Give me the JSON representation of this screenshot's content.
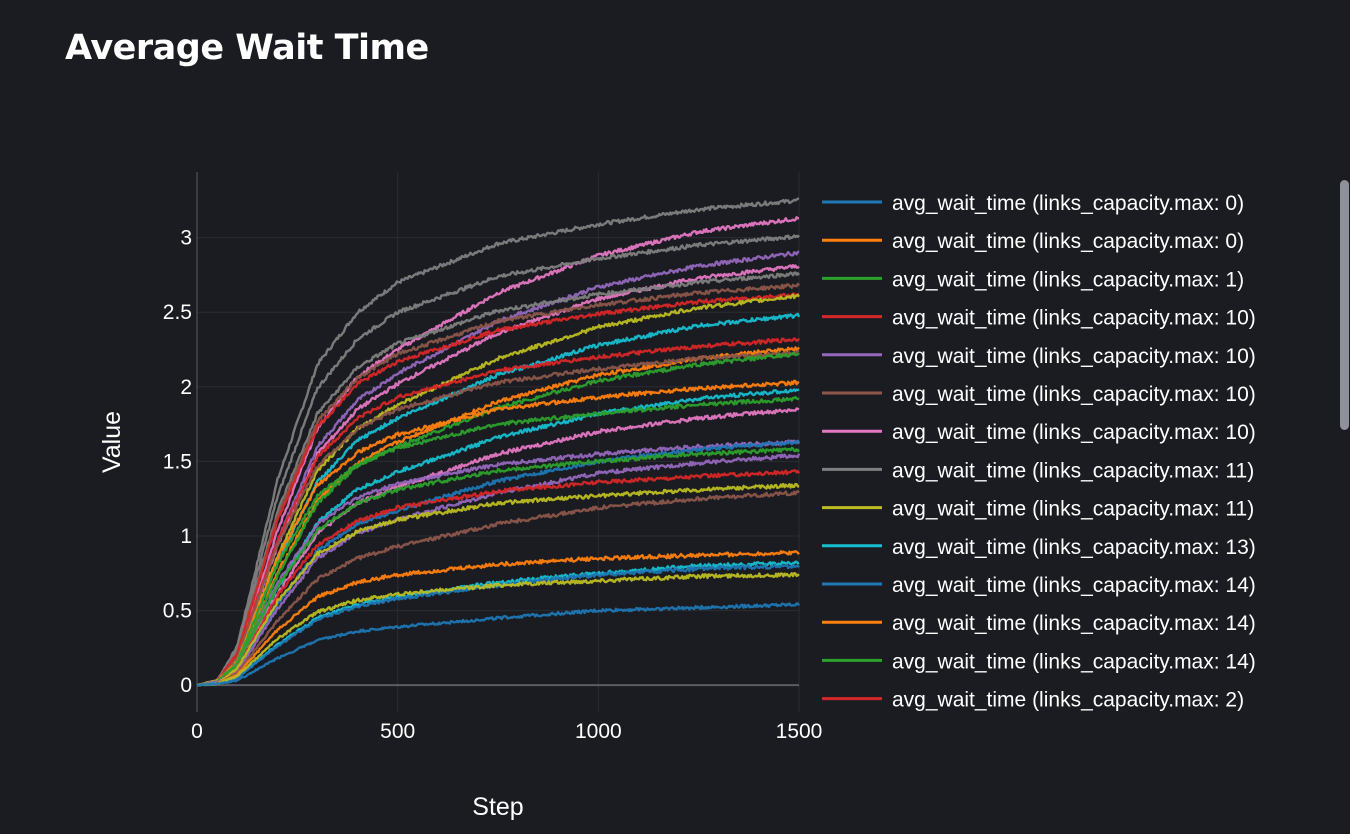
{
  "chart_data": {
    "type": "line",
    "title": "Average Wait Time",
    "xlabel": "Step",
    "ylabel": "Value",
    "xlim": [
      0,
      1500
    ],
    "ylim": [
      -0.18,
      3.44
    ],
    "xticks": [
      0,
      500,
      1000,
      1500
    ],
    "yticks": [
      0,
      0.5,
      1,
      1.5,
      2,
      2.5,
      3
    ],
    "grid": true,
    "legend_placement": "right",
    "x": [
      0,
      50,
      100,
      200,
      300,
      400,
      500,
      750,
      1000,
      1250,
      1500
    ],
    "series": [
      {
        "color": "#7f7f7f",
        "values": [
          0,
          0.03,
          0.26,
          1.37,
          2.15,
          2.5,
          2.7,
          2.96,
          3.09,
          3.19,
          3.25
        ]
      },
      {
        "color": "#e377c2",
        "values": [
          0,
          0.03,
          0.19,
          1.03,
          1.72,
          2.07,
          2.25,
          2.63,
          2.88,
          3.04,
          3.13
        ]
      },
      {
        "color": "#7f7f7f",
        "values": [
          0,
          0.03,
          0.24,
          1.26,
          1.99,
          2.32,
          2.5,
          2.74,
          2.86,
          2.95,
          3.01
        ]
      },
      {
        "color": "#9467bd",
        "values": [
          0,
          0.03,
          0.17,
          0.96,
          1.6,
          1.91,
          2.09,
          2.44,
          2.67,
          2.81,
          2.9
        ]
      },
      {
        "color": "#e377c2",
        "values": [
          0,
          0.03,
          0.17,
          0.93,
          1.55,
          1.85,
          2.02,
          2.36,
          2.59,
          2.73,
          2.81
        ]
      },
      {
        "color": "#7f7f7f",
        "values": [
          0,
          0.03,
          0.22,
          1.16,
          1.82,
          2.13,
          2.29,
          2.51,
          2.62,
          2.7,
          2.76
        ]
      },
      {
        "color": "#8c564b",
        "values": [
          0,
          0.03,
          0.21,
          1.13,
          1.77,
          2.06,
          2.22,
          2.44,
          2.55,
          2.63,
          2.68
        ]
      },
      {
        "color": "#d62728",
        "values": [
          0,
          0.03,
          0.21,
          1.1,
          1.73,
          2.02,
          2.17,
          2.38,
          2.49,
          2.57,
          2.62
        ]
      },
      {
        "color": "#bcbd22",
        "values": [
          0,
          0.03,
          0.16,
          0.86,
          1.44,
          1.72,
          1.88,
          2.19,
          2.4,
          2.53,
          2.61
        ]
      },
      {
        "color": "#17becf",
        "values": [
          0,
          0.02,
          0.15,
          0.82,
          1.36,
          1.64,
          1.79,
          2.08,
          2.28,
          2.41,
          2.48
        ]
      },
      {
        "color": "#d62728",
        "values": [
          0,
          0.02,
          0.19,
          0.97,
          1.53,
          1.79,
          1.93,
          2.11,
          2.2,
          2.27,
          2.32
        ]
      },
      {
        "color": "#ff7f0e",
        "values": [
          0,
          0.02,
          0.14,
          0.75,
          1.24,
          1.49,
          1.63,
          1.9,
          2.08,
          2.19,
          2.26
        ]
      },
      {
        "color": "#8c564b",
        "values": [
          0,
          0.02,
          0.18,
          0.94,
          1.47,
          1.72,
          1.85,
          2.03,
          2.12,
          2.19,
          2.23
        ]
      },
      {
        "color": "#2ca02c",
        "values": [
          0,
          0.02,
          0.13,
          0.73,
          1.22,
          1.47,
          1.6,
          1.86,
          2.04,
          2.15,
          2.22
        ]
      },
      {
        "color": "#ff7f0e",
        "values": [
          0,
          0.02,
          0.16,
          0.85,
          1.34,
          1.56,
          1.68,
          1.85,
          1.93,
          1.99,
          2.03
        ]
      },
      {
        "color": "#17becf",
        "values": [
          0,
          0.02,
          0.12,
          0.65,
          1.09,
          1.31,
          1.43,
          1.66,
          1.82,
          1.92,
          1.98
        ]
      },
      {
        "color": "#2ca02c",
        "values": [
          0,
          0.02,
          0.15,
          0.81,
          1.27,
          1.48,
          1.59,
          1.75,
          1.82,
          1.88,
          1.92
        ]
      },
      {
        "color": "#e377c2",
        "values": [
          0,
          0.02,
          0.11,
          0.61,
          1.02,
          1.22,
          1.33,
          1.55,
          1.7,
          1.79,
          1.85
        ]
      },
      {
        "color": "#9467bd",
        "values": [
          0,
          0.02,
          0.13,
          0.68,
          1.08,
          1.26,
          1.35,
          1.48,
          1.55,
          1.6,
          1.63
        ]
      },
      {
        "color": "#1f77b4",
        "values": [
          0,
          0.02,
          0.1,
          0.54,
          0.9,
          1.08,
          1.17,
          1.37,
          1.5,
          1.58,
          1.63
        ]
      },
      {
        "color": "#2ca02c",
        "values": [
          0,
          0.02,
          0.13,
          0.66,
          1.04,
          1.22,
          1.31,
          1.44,
          1.5,
          1.55,
          1.58
        ]
      },
      {
        "color": "#9467bd",
        "values": [
          0,
          0.02,
          0.09,
          0.51,
          0.85,
          1.02,
          1.11,
          1.29,
          1.42,
          1.49,
          1.54
        ]
      },
      {
        "color": "#d62728",
        "values": [
          0,
          0.01,
          0.11,
          0.6,
          0.94,
          1.1,
          1.19,
          1.3,
          1.36,
          1.4,
          1.43
        ]
      },
      {
        "color": "#bcbd22",
        "values": [
          0,
          0.01,
          0.11,
          0.56,
          0.88,
          1.03,
          1.11,
          1.22,
          1.27,
          1.31,
          1.34
        ]
      },
      {
        "color": "#8c564b",
        "values": [
          0,
          0.01,
          0.08,
          0.43,
          0.71,
          0.85,
          0.93,
          1.08,
          1.19,
          1.25,
          1.29
        ]
      },
      {
        "color": "#ff7f0e",
        "values": [
          0,
          0.01,
          0.07,
          0.37,
          0.59,
          0.69,
          0.74,
          0.81,
          0.85,
          0.87,
          0.89
        ]
      },
      {
        "color": "#17becf",
        "values": [
          0,
          0.01,
          0.05,
          0.27,
          0.45,
          0.54,
          0.59,
          0.69,
          0.75,
          0.8,
          0.82
        ]
      },
      {
        "color": "#1f77b4",
        "values": [
          0,
          0.01,
          0.05,
          0.26,
          0.44,
          0.53,
          0.58,
          0.67,
          0.74,
          0.78,
          0.8
        ]
      },
      {
        "color": "#bcbd22",
        "values": [
          0,
          0.01,
          0.06,
          0.31,
          0.49,
          0.57,
          0.61,
          0.67,
          0.7,
          0.73,
          0.74
        ]
      },
      {
        "color": "#1f77b4",
        "values": [
          0,
          0.01,
          0.03,
          0.18,
          0.3,
          0.36,
          0.39,
          0.45,
          0.5,
          0.52,
          0.54
        ]
      }
    ],
    "legend": [
      {
        "name": "avg_wait_time (links_capacity.max: 0)",
        "color": "#1f77b4"
      },
      {
        "name": "avg_wait_time (links_capacity.max: 0)",
        "color": "#ff7f0e"
      },
      {
        "name": "avg_wait_time (links_capacity.max: 1)",
        "color": "#2ca02c"
      },
      {
        "name": "avg_wait_time (links_capacity.max: 10)",
        "color": "#d62728"
      },
      {
        "name": "avg_wait_time (links_capacity.max: 10)",
        "color": "#9467bd"
      },
      {
        "name": "avg_wait_time (links_capacity.max: 10)",
        "color": "#8c564b"
      },
      {
        "name": "avg_wait_time (links_capacity.max: 10)",
        "color": "#e377c2"
      },
      {
        "name": "avg_wait_time (links_capacity.max: 11)",
        "color": "#7f7f7f"
      },
      {
        "name": "avg_wait_time (links_capacity.max: 11)",
        "color": "#bcbd22"
      },
      {
        "name": "avg_wait_time (links_capacity.max: 13)",
        "color": "#17becf"
      },
      {
        "name": "avg_wait_time (links_capacity.max: 14)",
        "color": "#1f77b4"
      },
      {
        "name": "avg_wait_time (links_capacity.max: 14)",
        "color": "#ff7f0e"
      },
      {
        "name": "avg_wait_time (links_capacity.max: 14)",
        "color": "#2ca02c"
      },
      {
        "name": "avg_wait_time (links_capacity.max: 2)",
        "color": "#d62728"
      }
    ]
  }
}
